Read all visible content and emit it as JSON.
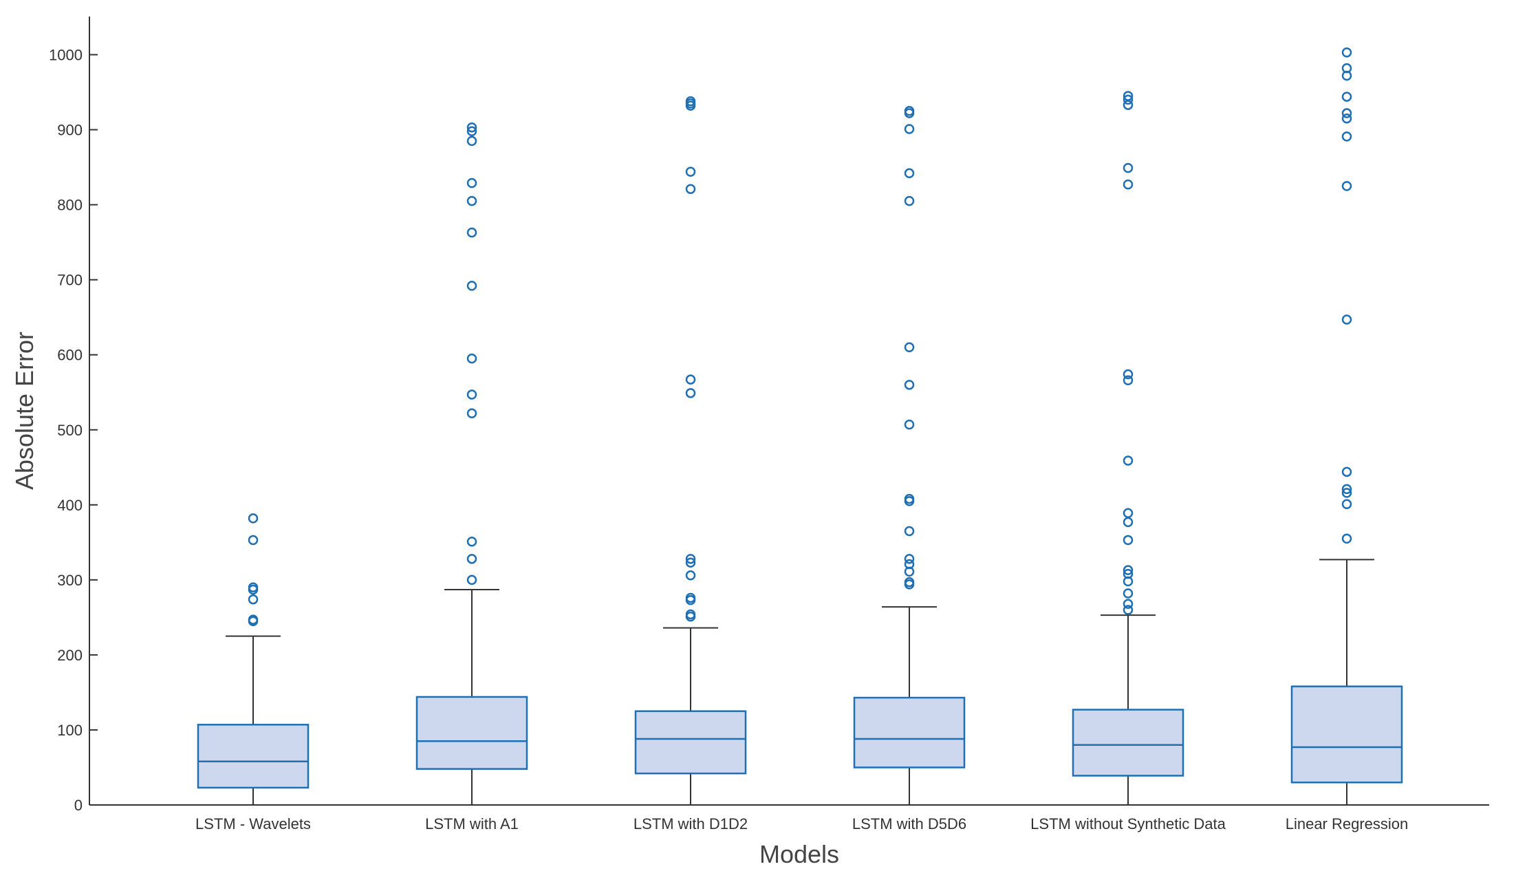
{
  "chart_data": {
    "type": "box",
    "title": "",
    "xlabel": "Models",
    "ylabel": "Absolute Error",
    "ylim": [
      0,
      1050
    ],
    "yticks": [
      0,
      100,
      200,
      300,
      400,
      500,
      600,
      700,
      800,
      900,
      1000
    ],
    "grid": false,
    "colors": {
      "box_fill": "#cdd8ef",
      "box_edge": "#1f6fb4",
      "whisker": "#333333",
      "outlier": "#1f6fb4",
      "axis": "#333333"
    },
    "categories": [
      "LSTM - Wavelets",
      "LSTM with A1",
      "LSTM with D1D2",
      "LSTM with D5D6",
      "LSTM without Synthetic Data",
      "Linear Regression"
    ],
    "boxes": [
      {
        "name": "LSTM - Wavelets",
        "whisker_low": 0,
        "q1": 23,
        "median": 58,
        "q3": 107,
        "whisker_high": 225,
        "outliers": [
          245,
          247,
          274,
          287,
          290,
          353,
          382
        ]
      },
      {
        "name": "LSTM with A1",
        "whisker_low": 0,
        "q1": 48,
        "median": 85,
        "q3": 144,
        "whisker_high": 287,
        "outliers": [
          300,
          328,
          351,
          522,
          547,
          595,
          692,
          763,
          805,
          829,
          885,
          898,
          903
        ]
      },
      {
        "name": "LSTM with D1D2",
        "whisker_low": 0,
        "q1": 42,
        "median": 88,
        "q3": 125,
        "whisker_high": 236,
        "outliers": [
          251,
          254,
          273,
          276,
          306,
          323,
          328,
          549,
          567,
          821,
          844,
          932,
          935,
          938
        ]
      },
      {
        "name": "LSTM with D5D6",
        "whisker_low": 0,
        "q1": 50,
        "median": 88,
        "q3": 143,
        "whisker_high": 264,
        "outliers": [
          294,
          297,
          311,
          321,
          328,
          365,
          405,
          408,
          507,
          560,
          610,
          805,
          842,
          901,
          922,
          925
        ]
      },
      {
        "name": "LSTM without Synthetic Data",
        "whisker_low": 0,
        "q1": 39,
        "median": 80,
        "q3": 127,
        "whisker_high": 253,
        "outliers": [
          260,
          268,
          282,
          298,
          308,
          313,
          353,
          377,
          389,
          459,
          566,
          574,
          827,
          849,
          933,
          940,
          945
        ]
      },
      {
        "name": "Linear Regression",
        "whisker_low": 0,
        "q1": 30,
        "median": 77,
        "q3": 158,
        "whisker_high": 327,
        "outliers": [
          355,
          401,
          416,
          421,
          444,
          647,
          825,
          891,
          915,
          922,
          944,
          972,
          982,
          1003
        ]
      }
    ]
  }
}
